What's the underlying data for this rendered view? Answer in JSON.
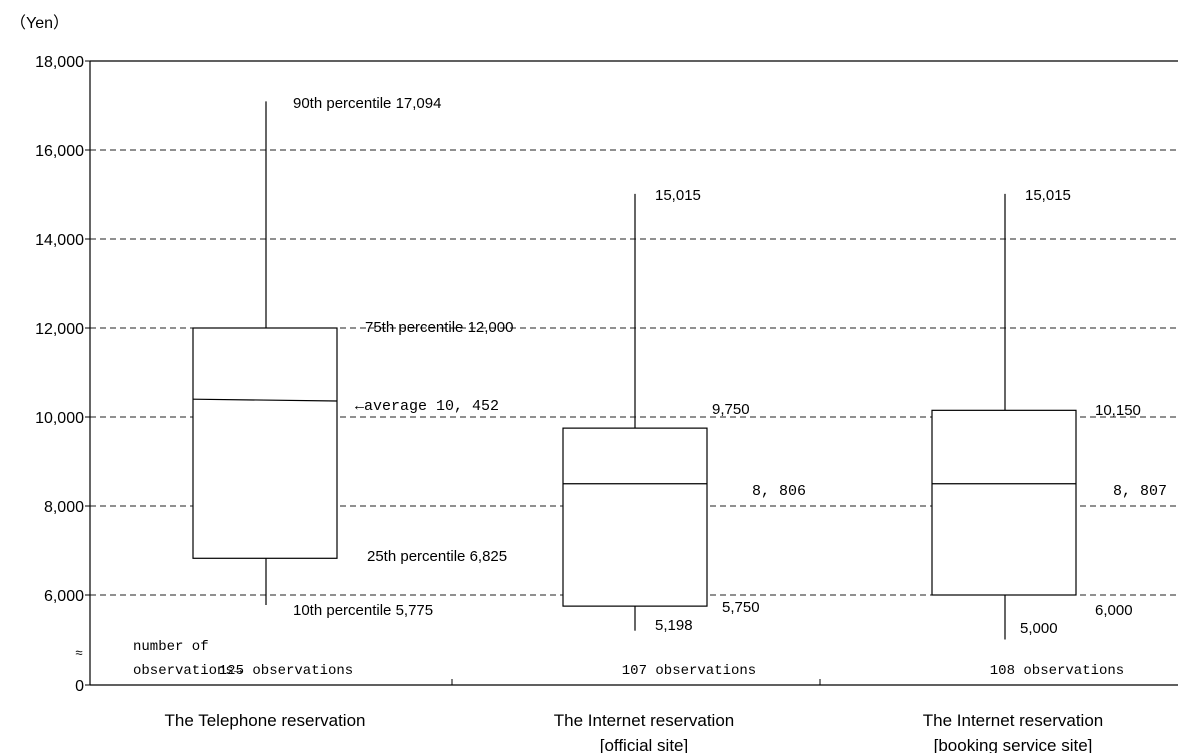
{
  "chart_data": {
    "type": "boxplot",
    "y_unit_label": "（Yen）",
    "ylim": [
      0,
      18000
    ],
    "axis_break_between": [
      0,
      5000
    ],
    "y_ticks": [
      {
        "value": 0,
        "label": "0"
      },
      {
        "value": 6000,
        "label": "6,000"
      },
      {
        "value": 8000,
        "label": "8,000"
      },
      {
        "value": 10000,
        "label": "10,000"
      },
      {
        "value": 12000,
        "label": "12,000"
      },
      {
        "value": 14000,
        "label": "14,000"
      },
      {
        "value": 16000,
        "label": "16,000"
      },
      {
        "value": 18000,
        "label": "18,000"
      }
    ],
    "grid": "horizontal-dashed",
    "axis_break_symbol": "≈",
    "observations_prefix": [
      "number of",
      "observations→"
    ],
    "categories": [
      {
        "label_lines": [
          "The Telephone reservation"
        ],
        "p10": 5775,
        "p25": 6825,
        "mean": 10452,
        "p75": 12000,
        "p90": 17094,
        "mean_line_left": 10400,
        "mean_line_right": 10360,
        "observations": "125 observations",
        "labels": {
          "p90": "90th percentile  17,094",
          "p75": "75th percentile  12,000",
          "mean": "←average 10, 452",
          "p25": "25th percentile  6,825",
          "p10": "10th percentile  5,775"
        }
      },
      {
        "label_lines": [
          "The Internet reservation",
          "[official site]"
        ],
        "p10": 5198,
        "p25": 5750,
        "mean": 8806,
        "p75": 9750,
        "p90": 15015,
        "mean_line_left": 8500,
        "mean_line_right": 8500,
        "observations": "107 observations",
        "labels": {
          "p90": "15,015",
          "p75": "9,750",
          "mean": "8, 806",
          "p25": "5,750",
          "p10": "5,198"
        }
      },
      {
        "label_lines": [
          "The Internet reservation",
          "[booking service site]"
        ],
        "p10": 5000,
        "p25": 6000,
        "mean": 8807,
        "p75": 10150,
        "p90": 15015,
        "mean_line_left": 8500,
        "mean_line_right": 8500,
        "observations": "108 observations",
        "labels": {
          "p90": "15,015",
          "p75": "10,150",
          "mean": "8, 807",
          "p25": "6,000",
          "p10": "5,000"
        }
      }
    ]
  }
}
